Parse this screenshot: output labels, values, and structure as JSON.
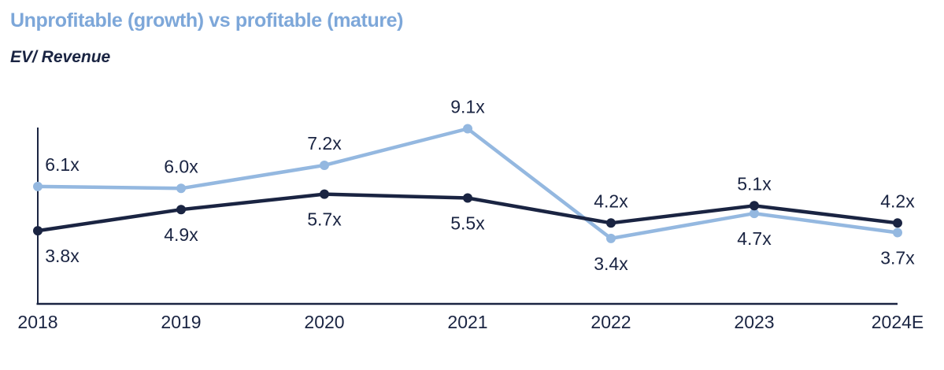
{
  "header": {
    "title": "Unprofitable (growth) vs profitable (mature)",
    "subtitle": "EV/ Revenue"
  },
  "colors": {
    "background": "#FFFFFF",
    "title_blue": "#7DA7D9",
    "growth_blue": "#94B8E0",
    "navy": "#1A2442",
    "axis": "#1A2442",
    "label_text": "#1A2442"
  },
  "chart_data": {
    "type": "line",
    "title": "Unprofitable (growth) vs profitable (mature)",
    "ylabel": "EV/ Revenue",
    "categories": [
      "2018",
      "2019",
      "2020",
      "2021",
      "2022",
      "2023",
      "2024E"
    ],
    "series": [
      {
        "name": "Unprofitable (growth)",
        "color": "#94B8E0",
        "values": [
          6.1,
          6.0,
          7.2,
          9.1,
          3.4,
          4.7,
          3.7
        ],
        "point_labels": [
          "6.1x",
          "6.0x",
          "7.2x",
          "9.1x",
          "3.4x",
          "4.7x",
          "3.7x"
        ],
        "label_side": [
          "above",
          "above",
          "above",
          "above",
          "below",
          "below",
          "below"
        ]
      },
      {
        "name": "Profitable (mature)",
        "color": "#1A2442",
        "values": [
          3.8,
          4.9,
          5.7,
          5.5,
          4.2,
          5.1,
          4.2
        ],
        "point_labels": [
          "3.8x",
          "4.9x",
          "5.7x",
          "5.5x",
          "4.2x",
          "5.1x",
          "4.2x"
        ],
        "label_side": [
          "below",
          "below",
          "below",
          "below",
          "above",
          "above",
          "above"
        ]
      }
    ],
    "ylim": [
      0,
      9.2
    ],
    "grid": false,
    "legend_position": "none",
    "data_labels": true,
    "axes": {
      "x_axis_visible": true,
      "y_axis_visible": true,
      "y_tick_labels": "none"
    }
  }
}
